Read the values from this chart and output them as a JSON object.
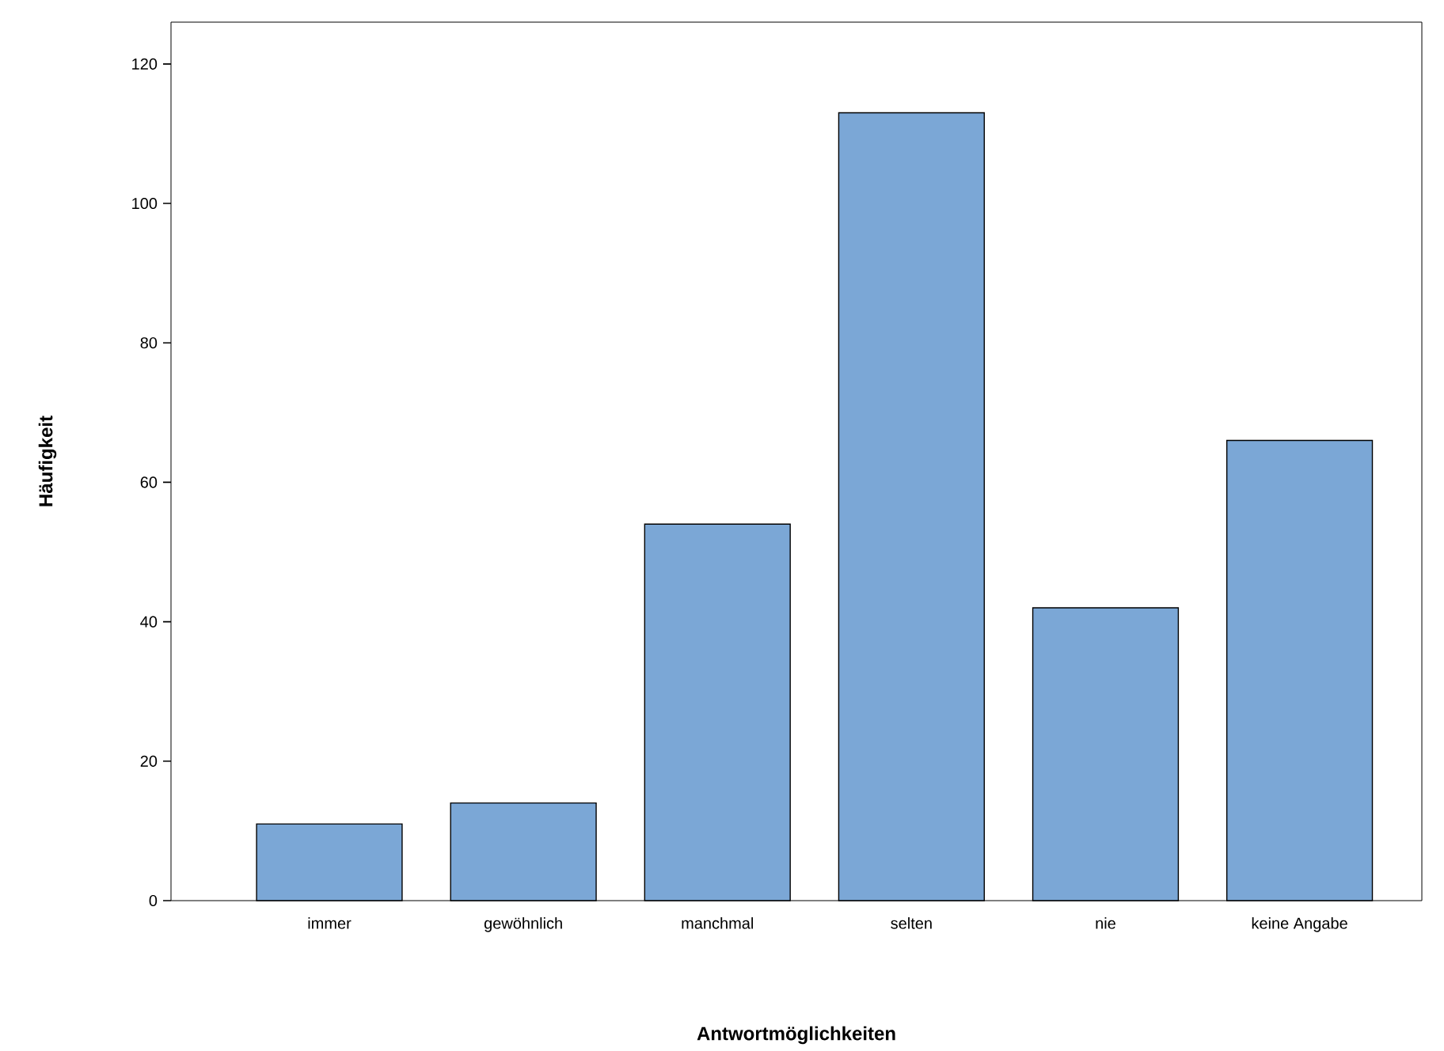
{
  "chart_data": {
    "type": "bar",
    "xlabel": "Antwortmöglichkeiten",
    "ylabel": "Häufigkeit",
    "categories": [
      "immer",
      "gewöhnlich",
      "manchmal",
      "selten",
      "nie",
      "keine Angabe"
    ],
    "values": [
      11,
      14,
      54,
      113,
      42,
      66
    ],
    "color": "#7ba7d6",
    "ylim": [
      0,
      126
    ],
    "yticks": [
      0,
      20,
      40,
      60,
      80,
      100,
      120
    ]
  }
}
